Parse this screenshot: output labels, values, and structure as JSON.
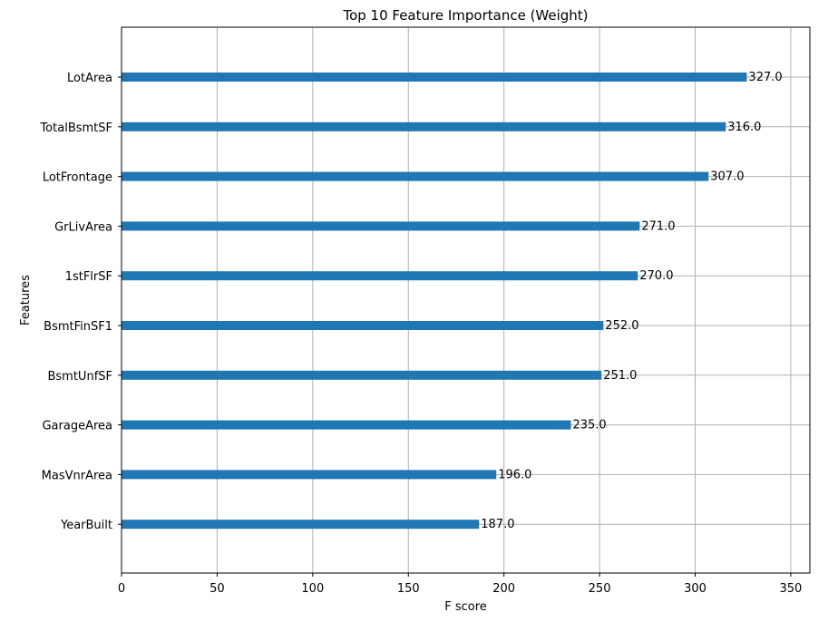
{
  "chart_data": {
    "type": "bar",
    "orientation": "horizontal",
    "title": "Top 10 Feature Importance (Weight)",
    "xlabel": "F score",
    "ylabel": "Features",
    "categories": [
      "LotArea",
      "TotalBsmtSF",
      "LotFrontage",
      "GrLivArea",
      "1stFlrSF",
      "BsmtFinSF1",
      "BsmtUnfSF",
      "GarageArea",
      "MasVnrArea",
      "YearBuilt"
    ],
    "values": [
      327,
      316,
      307,
      271,
      270,
      252,
      251,
      235,
      196,
      187
    ],
    "value_labels": [
      "327.0",
      "316.0",
      "307.0",
      "271.0",
      "270.0",
      "252.0",
      "251.0",
      "235.0",
      "196.0",
      "187.0"
    ],
    "xlim": [
      0,
      360
    ],
    "xticks": [
      0,
      50,
      100,
      150,
      200,
      250,
      300,
      350
    ],
    "grid": true,
    "bar_color": "#1f77b4"
  }
}
